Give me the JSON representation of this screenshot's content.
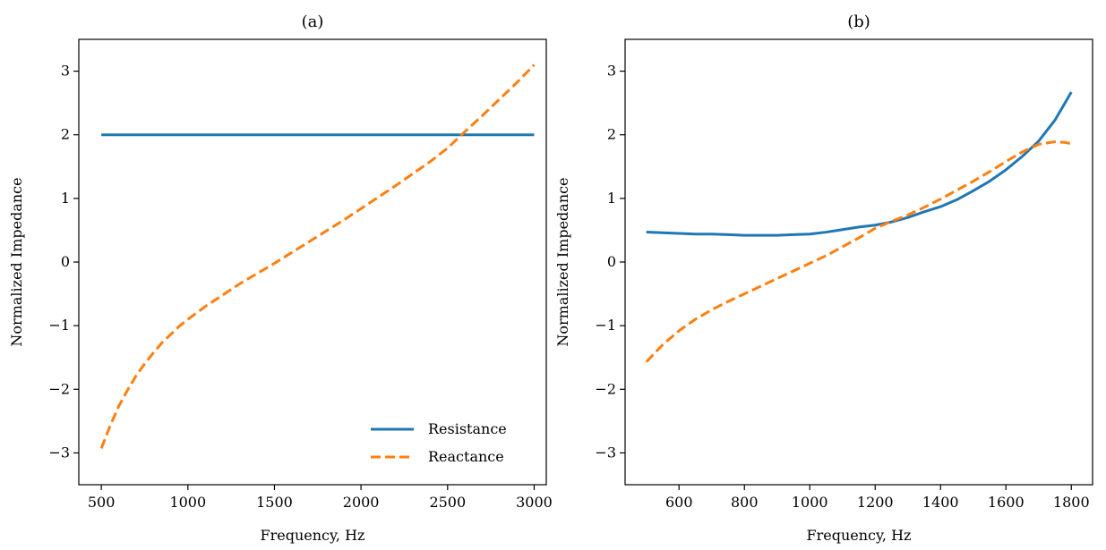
{
  "colors": {
    "resistance": "#1f77b4",
    "reactance": "#ff7f0e"
  },
  "chart_data": [
    {
      "type": "line",
      "title": "(a)",
      "xlabel": "Frequency, Hz",
      "ylabel": "Normalized Impedance",
      "xlim": [
        370,
        3070
      ],
      "ylim": [
        -3.5,
        3.5
      ],
      "xticks": [
        500,
        1000,
        1500,
        2000,
        2500,
        3000
      ],
      "yticks": [
        -3,
        -2,
        -1,
        0,
        1,
        2,
        3
      ],
      "xtick_labels": [
        "500",
        "1000",
        "1500",
        "2000",
        "2500",
        "3000"
      ],
      "ytick_labels": [
        "−3",
        "−2",
        "−1",
        "0",
        "1",
        "2",
        "3"
      ],
      "grid": false,
      "legend": "lower-right",
      "series": [
        {
          "name": "Resistance",
          "style": "solid",
          "x": [
            500,
            3000
          ],
          "y": [
            2.0,
            2.0
          ]
        },
        {
          "name": "Reactance",
          "style": "dashed",
          "x": [
            500,
            550,
            600,
            650,
            700,
            750,
            800,
            850,
            900,
            950,
            1000,
            1100,
            1200,
            1300,
            1400,
            1500,
            1600,
            1700,
            1800,
            1900,
            2000,
            2100,
            2200,
            2300,
            2400,
            2500,
            2600,
            2700,
            2800,
            2900,
            3000
          ],
          "y": [
            -2.93,
            -2.58,
            -2.27,
            -2.02,
            -1.79,
            -1.6,
            -1.43,
            -1.27,
            -1.14,
            -1.01,
            -0.9,
            -0.7,
            -0.52,
            -0.34,
            -0.18,
            -0.02,
            0.15,
            0.32,
            0.49,
            0.66,
            0.84,
            1.02,
            1.2,
            1.39,
            1.58,
            1.79,
            2.05,
            2.3,
            2.56,
            2.82,
            3.1
          ]
        }
      ]
    },
    {
      "type": "line",
      "title": "(b)",
      "xlabel": "Frequency, Hz",
      "ylabel": "Normalized Impedance",
      "xlim": [
        435,
        1865
      ],
      "ylim": [
        -3.5,
        3.5
      ],
      "xticks": [
        600,
        800,
        1000,
        1200,
        1400,
        1600,
        1800
      ],
      "yticks": [
        -3,
        -2,
        -1,
        0,
        1,
        2,
        3
      ],
      "xtick_labels": [
        "600",
        "800",
        "1000",
        "1200",
        "1400",
        "1600",
        "1800"
      ],
      "ytick_labels": [
        "−3",
        "−2",
        "−1",
        "0",
        "1",
        "2",
        "3"
      ],
      "grid": false,
      "series": [
        {
          "name": "Resistance",
          "style": "solid",
          "x": [
            500,
            550,
            600,
            650,
            700,
            750,
            800,
            850,
            900,
            950,
            1000,
            1050,
            1100,
            1150,
            1200,
            1250,
            1300,
            1350,
            1400,
            1450,
            1500,
            1550,
            1600,
            1650,
            1700,
            1750,
            1800
          ],
          "y": [
            0.47,
            0.46,
            0.45,
            0.44,
            0.44,
            0.43,
            0.42,
            0.42,
            0.42,
            0.43,
            0.44,
            0.47,
            0.51,
            0.55,
            0.58,
            0.63,
            0.7,
            0.79,
            0.87,
            0.98,
            1.12,
            1.27,
            1.45,
            1.66,
            1.9,
            2.23,
            2.67
          ]
        },
        {
          "name": "Reactance",
          "style": "dashed",
          "x": [
            500,
            550,
            600,
            650,
            700,
            750,
            800,
            850,
            900,
            950,
            1000,
            1050,
            1100,
            1150,
            1200,
            1250,
            1300,
            1350,
            1400,
            1450,
            1500,
            1550,
            1600,
            1650,
            1700,
            1750,
            1780,
            1800
          ],
          "y": [
            -1.57,
            -1.3,
            -1.08,
            -0.9,
            -0.75,
            -0.62,
            -0.5,
            -0.38,
            -0.26,
            -0.14,
            -0.02,
            0.1,
            0.24,
            0.38,
            0.53,
            0.64,
            0.74,
            0.86,
            0.99,
            1.13,
            1.27,
            1.42,
            1.58,
            1.73,
            1.85,
            1.89,
            1.88,
            1.86
          ]
        }
      ]
    }
  ]
}
